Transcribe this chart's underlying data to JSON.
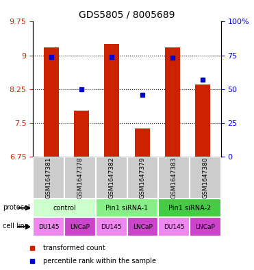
{
  "title": "GDS5805 / 8005689",
  "samples": [
    "GSM1647381",
    "GSM1647378",
    "GSM1647382",
    "GSM1647379",
    "GSM1647383",
    "GSM1647380"
  ],
  "bar_values": [
    9.18,
    7.77,
    9.25,
    7.38,
    9.17,
    8.35
  ],
  "percentile_values": [
    74,
    50,
    74,
    46,
    73,
    57
  ],
  "ylim_left": [
    6.75,
    9.75
  ],
  "ylim_right": [
    0,
    100
  ],
  "yticks_left": [
    6.75,
    7.5,
    8.25,
    9.0,
    9.75
  ],
  "yticks_right": [
    0,
    25,
    50,
    75,
    100
  ],
  "ytick_labels_left": [
    "6.75",
    "7.5",
    "8.25",
    "9",
    "9.75"
  ],
  "ytick_labels_right": [
    "0",
    "25",
    "50",
    "75",
    "100%"
  ],
  "bar_color": "#cc2200",
  "dot_color": "#0000cc",
  "grid_yticks": [
    7.5,
    8.25,
    9.0
  ],
  "protocols": [
    {
      "label": "control",
      "span": [
        0,
        2
      ],
      "color": "#ccffcc"
    },
    {
      "label": "Pin1 siRNA-1",
      "span": [
        2,
        4
      ],
      "color": "#88ee88"
    },
    {
      "label": "Pin1 siRNA-2",
      "span": [
        4,
        6
      ],
      "color": "#44cc44"
    }
  ],
  "cell_labels": [
    "DU145",
    "LNCaP",
    "DU145",
    "LNCaP",
    "DU145",
    "LNCaP"
  ],
  "cell_colors": [
    "#ee88ee",
    "#cc44cc",
    "#ee88ee",
    "#cc44cc",
    "#ee88ee",
    "#cc44cc"
  ],
  "sample_bg_color": "#cccccc",
  "legend_bar_label": "transformed count",
  "legend_dot_label": "percentile rank within the sample",
  "protocol_row_label": "protocol",
  "cellline_row_label": "cell line"
}
